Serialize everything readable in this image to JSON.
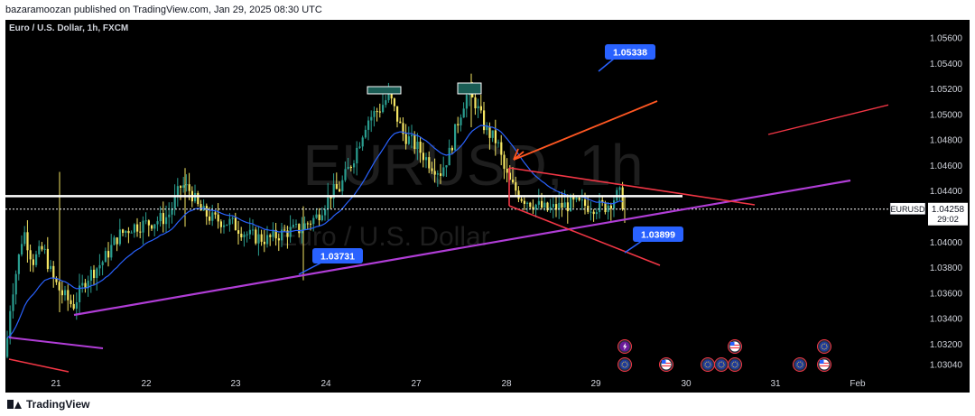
{
  "header": {
    "published_text": "bazaramoozan published on TradingView.com, Jan 29, 2025 08:30 UTC"
  },
  "footer": {
    "brand": "TradingView"
  },
  "chart_data": {
    "type": "candlestick",
    "title": "Euro / U.S. Dollar, 1h, FXCM",
    "watermark_symbol": "EURUSD, 1h",
    "watermark_name": "Euro / U.S. Dollar",
    "y_axis": {
      "range": [
        1.029,
        1.0575
      ],
      "ticks": [
        "1.05600",
        "1.05400",
        "1.05200",
        "1.05000",
        "1.04800",
        "1.04600",
        "1.04400",
        "1.04200",
        "1.04000",
        "1.03800",
        "1.03600",
        "1.03400",
        "1.03200",
        "1.03040"
      ]
    },
    "x_axis": {
      "ticks": [
        "21",
        "22",
        "23",
        "24",
        "27",
        "28",
        "29",
        "30",
        "31",
        "Feb"
      ]
    },
    "price_label": {
      "symbol": "EURUSD",
      "price": "1.04258",
      "price_value": 1.04258,
      "countdown": "29:02"
    },
    "annotations": [
      {
        "text": "1.05338",
        "value": 1.05338
      },
      {
        "text": "1.03731",
        "value": 1.03731
      },
      {
        "text": "1.03899",
        "value": 1.03899
      }
    ],
    "horizontal_level": 1.0436,
    "colors": {
      "background": "#000000",
      "up_candle": "#2a9d8f",
      "down_candle": "#f5e663",
      "moving_average": "#2962ff",
      "trendline_purple": "#b03dd6",
      "trendline_red": "#f23645",
      "trendline_orange": "#ff5722",
      "label_blue": "#2962ff",
      "horizontal_level": "#ffffff"
    }
  }
}
